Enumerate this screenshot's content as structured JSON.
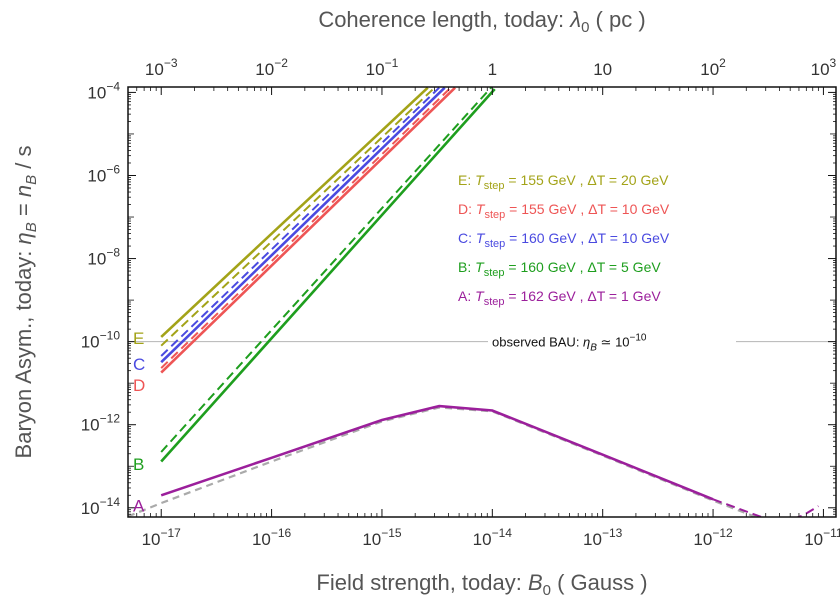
{
  "chart_data": {
    "type": "line",
    "x_axis": {
      "label_main": "Field strength, today: ",
      "label_symbol": "B",
      "label_sub": "0",
      "label_unit": " ( Gauss )",
      "scale": "log",
      "range": [
        5e-18,
        1.3e-11
      ],
      "ticks": [
        {
          "value": 1e-17,
          "base": "10",
          "exp": "−17"
        },
        {
          "value": 1e-16,
          "base": "10",
          "exp": "−16"
        },
        {
          "value": 1e-15,
          "base": "10",
          "exp": "−15"
        },
        {
          "value": 1e-14,
          "base": "10",
          "exp": "−14"
        },
        {
          "value": 1e-13,
          "base": "10",
          "exp": "−13"
        },
        {
          "value": 1e-12,
          "base": "10",
          "exp": "−12"
        },
        {
          "value": 1e-11,
          "base": "10",
          "exp": "−11"
        }
      ]
    },
    "x2_axis": {
      "label_main": "Coherence length, today:  ",
      "label_symbol": "λ",
      "label_sub": "0",
      "label_unit": " ( pc )",
      "ticks": [
        {
          "value": 1e-17,
          "base": "10",
          "exp": "−3"
        },
        {
          "value": 1e-16,
          "base": "10",
          "exp": "−2"
        },
        {
          "value": 1e-15,
          "base": "10",
          "exp": "−1"
        },
        {
          "value": 1e-14,
          "base": "1",
          "exp": ""
        },
        {
          "value": 1e-13,
          "base": "10",
          "exp": ""
        },
        {
          "value": 1e-12,
          "base": "10",
          "exp": "2"
        },
        {
          "value": 1e-11,
          "base": "10",
          "exp": "3"
        }
      ]
    },
    "y_axis": {
      "label_main": "Baryon Asym., today:  ",
      "label_symbol": "η",
      "label_sub": "B",
      "label_eq": " = ",
      "label_symbol2": "n",
      "label_sub2": "B",
      "label_tail": " / s",
      "scale": "log",
      "range": [
        6e-15,
        0.000135
      ],
      "ticks": [
        {
          "value": 1e-14,
          "base": "10",
          "exp": "−14"
        },
        {
          "value": 1e-12,
          "base": "10",
          "exp": "−12"
        },
        {
          "value": 1e-10,
          "base": "10",
          "exp": "−10"
        },
        {
          "value": 1e-08,
          "base": "10",
          "exp": "−8"
        },
        {
          "value": 1e-06,
          "base": "10",
          "exp": "−6"
        },
        {
          "value": 0.0001,
          "base": "10",
          "exp": "−4"
        }
      ]
    },
    "reference_line": {
      "y": 1e-10,
      "text_prefix": "observed BAU: ",
      "text_symbol": "η",
      "text_sub": "B",
      "text_rel": " ≃ ",
      "text_base": "10",
      "text_exp": "−10"
    },
    "series": [
      {
        "id": "E",
        "end_label": "E",
        "color": "#a3a318",
        "T_step": "155 GeV",
        "delta_T": "20 GeV",
        "solid": [
          [
            1e-17,
            1.3e-10
          ],
          [
            2.6e-15,
            0.00013
          ]
        ],
        "dashed": [
          [
            1e-17,
            8e-11
          ],
          [
            3e-15,
            0.00013
          ]
        ]
      },
      {
        "id": "D",
        "end_label": "D",
        "color": "#ee5555",
        "T_step": "155 GeV",
        "delta_T": "10 GeV",
        "solid": [
          [
            1e-17,
            1.8e-11
          ],
          [
            4.6e-15,
            0.00013
          ]
        ],
        "dashed": [
          [
            1e-17,
            2.3e-11
          ],
          [
            4.2e-15,
            0.00013
          ]
        ]
      },
      {
        "id": "C",
        "end_label": "C",
        "color": "#4a4ae0",
        "T_step": "160 GeV",
        "delta_T": "10 GeV",
        "solid": [
          [
            1e-17,
            3.2e-11
          ],
          [
            3.7e-15,
            0.00013
          ]
        ],
        "dashed": [
          [
            1e-17,
            4.5e-11
          ],
          [
            3.3e-15,
            0.00013
          ]
        ]
      },
      {
        "id": "B",
        "end_label": "B",
        "color": "#1e9e1e",
        "T_step": "160 GeV",
        "delta_T": "5 GeV",
        "solid": [
          [
            1e-17,
            1.3e-13
          ],
          [
            1.05e-14,
            0.00012
          ]
        ],
        "dashed": [
          [
            1e-17,
            2.2e-13
          ],
          [
            1e-14,
            0.00014
          ]
        ]
      },
      {
        "id": "A",
        "end_label": "A",
        "color": "#9b1f9b",
        "T_step": "162 GeV",
        "delta_T": "1 GeV",
        "solid": [
          [
            1e-17,
            2e-14
          ],
          [
            1e-16,
            1.6e-13
          ],
          [
            1e-15,
            1.3e-12
          ],
          [
            3.3e-15,
            2.8e-12
          ],
          [
            1e-14,
            2.2e-12
          ],
          [
            1e-13,
            1.9e-13
          ],
          [
            1e-12,
            1.6e-14
          ]
        ],
        "dashed": [
          [
            1e-12,
            1.6e-14
          ],
          [
            3e-12,
            5.5e-15
          ],
          [
            4.5e-12,
            4.7e-15
          ],
          [
            6.5e-12,
            6.5e-15
          ],
          [
            9e-12,
            1.1e-14
          ]
        ],
        "grey_extension": [
          [
            5e-18,
            6.2e-15
          ],
          [
            1e-17,
            1.3e-14
          ],
          [
            1e-16,
            1.3e-13
          ],
          [
            1e-15,
            1.2e-12
          ],
          [
            3.3e-15,
            2.6e-12
          ],
          [
            1e-14,
            2.1e-12
          ],
          [
            1e-13,
            1.8e-13
          ],
          [
            1e-12,
            1.5e-14
          ],
          [
            1e-11,
            1.4e-15
          ]
        ]
      }
    ],
    "legend": {
      "placement": "top-right",
      "T_symbol": "T",
      "T_sub": "step",
      "eq": " = ",
      "delta_prefix": " , ΔT = ",
      "order": [
        "E",
        "D",
        "C",
        "B",
        "A"
      ]
    },
    "grid": false
  }
}
